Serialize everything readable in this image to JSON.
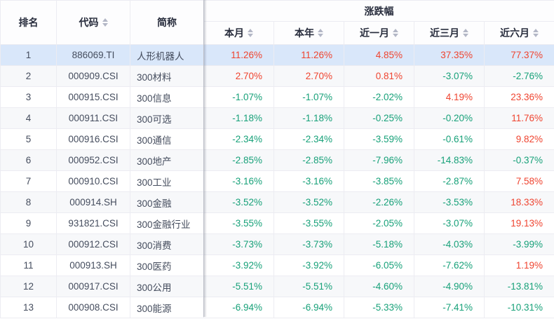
{
  "table": {
    "group_header": "涨跌幅",
    "columns": [
      {
        "key": "rank",
        "label": "排名",
        "sortable": false
      },
      {
        "key": "code",
        "label": "代码",
        "sortable": true
      },
      {
        "key": "name",
        "label": "简称",
        "sortable": false
      },
      {
        "key": "month",
        "label": "本月",
        "sortable": true
      },
      {
        "key": "year",
        "label": "本年",
        "sortable": true
      },
      {
        "key": "m1",
        "label": "近一月",
        "sortable": true
      },
      {
        "key": "m3",
        "label": "近三月",
        "sortable": true
      },
      {
        "key": "m6",
        "label": "近六月",
        "sortable": true
      }
    ],
    "rows": [
      {
        "rank": "1",
        "code": "886069.TI",
        "name": "人形机器人",
        "month": "11.26%",
        "year": "11.26%",
        "m1": "4.85%",
        "m3": "37.35%",
        "m6": "77.37%",
        "selected": true
      },
      {
        "rank": "2",
        "code": "000909.CSI",
        "name": "300材料",
        "month": "2.70%",
        "year": "2.70%",
        "m1": "0.81%",
        "m3": "-3.07%",
        "m6": "-2.76%",
        "selected": false
      },
      {
        "rank": "3",
        "code": "000915.CSI",
        "name": "300信息",
        "month": "-1.07%",
        "year": "-1.07%",
        "m1": "-2.02%",
        "m3": "4.19%",
        "m6": "23.36%",
        "selected": false
      },
      {
        "rank": "4",
        "code": "000911.CSI",
        "name": "300可选",
        "month": "-1.18%",
        "year": "-1.18%",
        "m1": "-0.25%",
        "m3": "-0.20%",
        "m6": "11.76%",
        "selected": false
      },
      {
        "rank": "5",
        "code": "000916.CSI",
        "name": "300通信",
        "month": "-2.34%",
        "year": "-2.34%",
        "m1": "-3.59%",
        "m3": "-0.61%",
        "m6": "9.82%",
        "selected": false
      },
      {
        "rank": "6",
        "code": "000952.CSI",
        "name": "300地产",
        "month": "-2.85%",
        "year": "-2.85%",
        "m1": "-7.96%",
        "m3": "-14.83%",
        "m6": "-0.37%",
        "selected": false
      },
      {
        "rank": "7",
        "code": "000910.CSI",
        "name": "300工业",
        "month": "-3.16%",
        "year": "-3.16%",
        "m1": "-3.85%",
        "m3": "-2.87%",
        "m6": "7.58%",
        "selected": false
      },
      {
        "rank": "8",
        "code": "000914.SH",
        "name": "300金融",
        "month": "-3.52%",
        "year": "-3.52%",
        "m1": "-2.26%",
        "m3": "-3.53%",
        "m6": "18.33%",
        "selected": false
      },
      {
        "rank": "9",
        "code": "931821.CSI",
        "name": "300金融行业",
        "month": "-3.55%",
        "year": "-3.55%",
        "m1": "-2.05%",
        "m3": "-3.07%",
        "m6": "19.13%",
        "selected": false
      },
      {
        "rank": "10",
        "code": "000912.CSI",
        "name": "300消费",
        "month": "-3.73%",
        "year": "-3.73%",
        "m1": "-5.18%",
        "m3": "-4.03%",
        "m6": "-3.99%",
        "selected": false
      },
      {
        "rank": "11",
        "code": "000913.SH",
        "name": "300医药",
        "month": "-3.92%",
        "year": "-3.92%",
        "m1": "-6.05%",
        "m3": "-7.62%",
        "m6": "1.19%",
        "selected": false
      },
      {
        "rank": "12",
        "code": "000917.CSI",
        "name": "300公用",
        "month": "-5.51%",
        "year": "-5.51%",
        "m1": "-4.60%",
        "m3": "-4.90%",
        "m6": "-13.81%",
        "selected": false
      },
      {
        "rank": "13",
        "code": "000908.CSI",
        "name": "300能源",
        "month": "-6.94%",
        "year": "-6.94%",
        "m1": "-5.33%",
        "m3": "-7.41%",
        "m6": "-10.31%",
        "selected": false
      }
    ]
  },
  "colors": {
    "up": "#ef4430",
    "down": "#17a179",
    "selected_row": "#d9e7fa",
    "stripe_row": "#f7f8fa",
    "border": "#ececf2",
    "header_text": "#272c3c"
  }
}
